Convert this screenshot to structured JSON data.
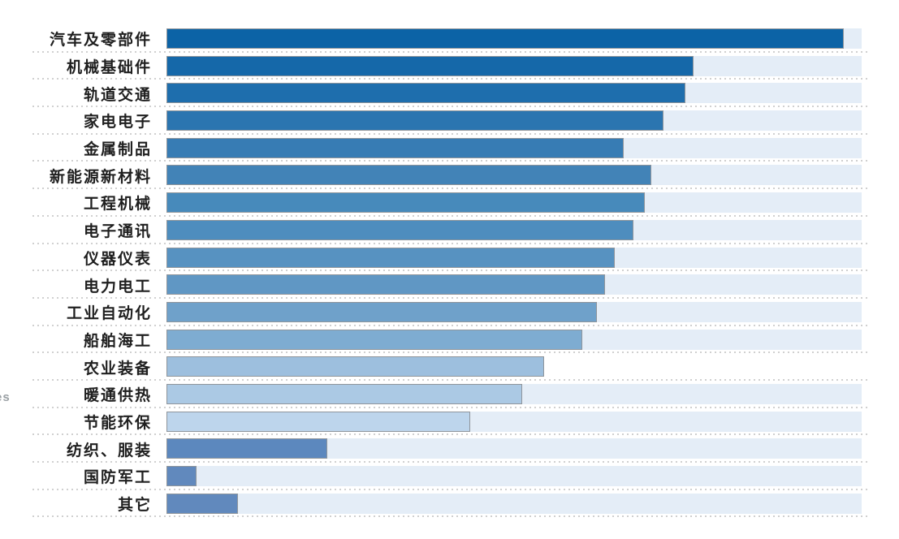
{
  "chart_data": {
    "type": "bar",
    "orientation": "horizontal",
    "title": "",
    "xlabel": "",
    "ylabel": "",
    "categories": [
      "汽车及零部件",
      "机械基础件",
      "轨道交通",
      "家电电子",
      "金属制品",
      "新能源新材料",
      "工程机械",
      "电子通讯",
      "仪器仪表",
      "电力电工",
      "工业自动化",
      "船舶海工",
      "农业装备",
      "暖通供热",
      "节能环保",
      "纺织、服装",
      "国防军工",
      "其它"
    ],
    "values": [
      97.4,
      75.8,
      74.7,
      71.5,
      65.8,
      69.7,
      68.8,
      67.2,
      64.5,
      63.1,
      61.9,
      59.8,
      54.3,
      51.2,
      43.7,
      23.1,
      4.3,
      10.3
    ],
    "xlim": [
      0,
      100
    ],
    "bar_colors": [
      "#0c63a6",
      "#1568a9",
      "#1e6ead",
      "#2b75b0",
      "#377cb4",
      "#4283b7",
      "#478abb",
      "#4e8dbe",
      "#5792c1",
      "#6097c4",
      "#6fa1ca",
      "#7eacd1",
      "#9dbfde",
      "#abc9e4",
      "#bdd5ec",
      "#5c88be",
      "#6189bd",
      "#6189bd"
    ],
    "track_color": "#e4edf7",
    "rows_without_track": [
      "农业装备"
    ],
    "separator_style": "dotted",
    "separator_color": "#d0d0d0",
    "legend": null,
    "grid": "dotted horizontal separators between rows, no axis ticks or value labels visible"
  },
  "annotations": {
    "left_edge_fragment": "es"
  }
}
